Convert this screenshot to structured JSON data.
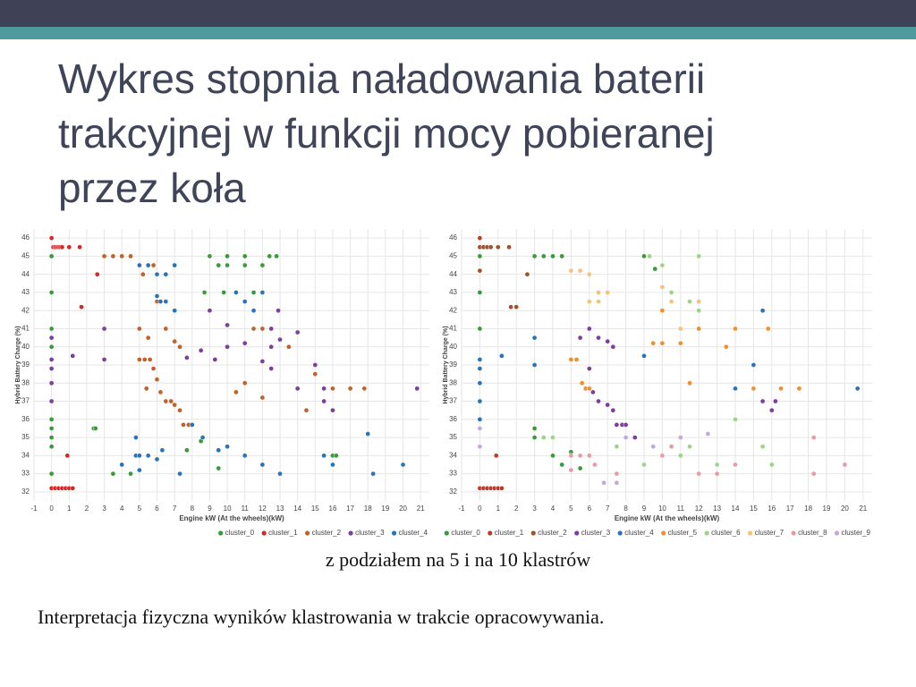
{
  "header": {
    "title": [
      "Wykres stopnia naładowania baterii",
      "trakcyjnej w funkcji mocy pobieranej",
      "przez koła"
    ]
  },
  "chart_data": [
    {
      "type": "scatter",
      "xlabel": "Engine kW (At the wheels)(kW)",
      "ylabel": "Hybrid Battery Charge (%)",
      "xlim": [
        -1,
        21.5
      ],
      "ylim": [
        31.5,
        46.5
      ],
      "xticks": [
        -1,
        0,
        1,
        2,
        3,
        4,
        5,
        6,
        7,
        8,
        9,
        10,
        11,
        12,
        13,
        14,
        15,
        16,
        17,
        18,
        19,
        20,
        21
      ],
      "yticks": [
        32,
        33,
        34,
        35,
        36,
        37,
        38,
        39,
        40,
        41,
        42,
        43,
        44,
        45,
        46
      ],
      "grid": true,
      "legend": "bottom-right",
      "series": [
        {
          "name": "cluster_0",
          "color": "#3a9a3a",
          "x": [
            0,
            0,
            0,
            0,
            0,
            0,
            0,
            0,
            0,
            0,
            9,
            10,
            11,
            12.4,
            12.8,
            9.5,
            10,
            11,
            12,
            8.7,
            9.8,
            11.5,
            2.4,
            2.5,
            3.5,
            4.5,
            7.7,
            8.5,
            9.5,
            16,
            16.2
          ],
          "values": [
            45,
            43,
            41,
            40,
            38,
            36,
            35.5,
            35,
            34.5,
            33,
            45,
            45,
            45,
            45,
            45,
            44.5,
            44.5,
            44.5,
            44.5,
            43,
            43,
            43,
            35.5,
            35.5,
            33,
            33,
            34.3,
            34.8,
            33.3,
            34,
            34
          ]
        },
        {
          "name": "cluster_1",
          "color": "#d62728",
          "x": [
            0,
            0.1,
            0.2,
            0.3,
            0.4,
            0.5,
            0.6,
            1,
            1.6,
            0,
            0.2,
            0.4,
            0.6,
            0.8,
            1,
            1.2,
            1.7,
            0.9,
            2.6
          ],
          "values": [
            46,
            45.5,
            45.5,
            45.5,
            45.5,
            45.5,
            45.5,
            45.5,
            45.5,
            32.2,
            32.2,
            32.2,
            32.2,
            32.2,
            32.2,
            32.2,
            42.2,
            34,
            44
          ]
        },
        {
          "name": "cluster_2",
          "color": "#c0622c",
          "x": [
            3,
            3.5,
            4,
            4.5,
            5.2,
            5.8,
            6,
            5,
            5.5,
            6.5,
            7,
            7.3,
            5,
            5.3,
            5.6,
            5.8,
            6,
            5.4,
            6.2,
            6.5,
            6.8,
            7,
            7.3,
            7.5,
            7.8,
            8,
            11,
            11.5,
            12,
            13.5,
            14,
            14.5,
            15,
            16,
            17,
            17.8,
            11,
            10.5,
            12
          ],
          "values": [
            45,
            45,
            45,
            45,
            44,
            44.5,
            42.5,
            41,
            40.5,
            41,
            40.3,
            40,
            39.3,
            39.3,
            39.3,
            38.8,
            38.2,
            37.7,
            37.5,
            37,
            37,
            36.8,
            36.5,
            35.7,
            35.7,
            35.7,
            40.2,
            41,
            41,
            40,
            37.7,
            36.5,
            38.5,
            37.7,
            37.7,
            37.7,
            38,
            37.5,
            37.2
          ]
        },
        {
          "name": "cluster_3",
          "color": "#7b3f9e",
          "x": [
            0,
            0,
            0,
            0,
            0,
            3,
            3,
            1.2,
            7.7,
            8.5,
            9.3,
            10,
            11,
            12.5,
            13,
            14,
            12,
            12.5,
            15,
            14,
            15.5,
            20.8,
            15.5,
            16,
            10,
            9,
            12.5,
            12.9
          ],
          "values": [
            40.5,
            39.3,
            38.8,
            38,
            37,
            41,
            39.3,
            39.5,
            39.4,
            39.8,
            39.3,
            40,
            40.2,
            40,
            40.4,
            40.8,
            39.2,
            38.8,
            39,
            37.7,
            37.7,
            37.7,
            37,
            36.5,
            41.2,
            42,
            41,
            42
          ]
        },
        {
          "name": "cluster_4",
          "color": "#2b73b5",
          "x": [
            5,
            5.5,
            6,
            6.5,
            7,
            6,
            6.2,
            6.5,
            7,
            4.8,
            4.8,
            5,
            5.5,
            6,
            6.3,
            4,
            5,
            7.3,
            8,
            8.6,
            9.5,
            10,
            11,
            12,
            13,
            18.3,
            20,
            18,
            10.5,
            11,
            12,
            11.5,
            15.5,
            16
          ],
          "values": [
            44.5,
            44.5,
            44,
            44,
            44.5,
            42.8,
            42.5,
            42.5,
            42,
            35,
            34,
            34,
            34,
            33.8,
            34.3,
            33.5,
            33.2,
            33,
            35.7,
            35,
            34.3,
            34.5,
            34,
            33.5,
            33,
            33,
            33.5,
            35.2,
            43,
            42.5,
            43,
            42,
            34,
            33.5
          ]
        }
      ]
    },
    {
      "type": "scatter",
      "xlabel": "Engine kW (At the wheels)(kW)",
      "ylabel": "Hybrid Battery Charge (%)",
      "xlim": [
        -1,
        21.5
      ],
      "ylim": [
        31.5,
        46.5
      ],
      "xticks": [
        -1,
        0,
        1,
        2,
        3,
        4,
        5,
        6,
        7,
        8,
        9,
        10,
        11,
        12,
        13,
        14,
        15,
        16,
        17,
        18,
        19,
        20,
        21
      ],
      "yticks": [
        32,
        33,
        34,
        35,
        36,
        37,
        38,
        39,
        40,
        41,
        42,
        43,
        44,
        45,
        46
      ],
      "grid": true,
      "legend": "bottom-right",
      "series": [
        {
          "name": "cluster_0",
          "color": "#3a9a3a",
          "x": [
            0,
            0,
            0,
            3,
            3.5,
            4,
            4.5,
            9,
            9.6,
            3,
            3,
            4,
            5,
            5.5,
            4.5
          ],
          "values": [
            45,
            43,
            41,
            45,
            45,
            45,
            45,
            45,
            44.3,
            35.5,
            35,
            34,
            34.2,
            33.3,
            33.5
          ]
        },
        {
          "name": "cluster_1",
          "color": "#c0392b",
          "x": [
            0,
            0,
            0.2,
            0.4,
            0.6,
            0.8,
            1,
            1.2,
            0.9
          ],
          "values": [
            46,
            32.2,
            32.2,
            32.2,
            32.2,
            32.2,
            32.2,
            32.2,
            34
          ]
        },
        {
          "name": "cluster_2",
          "color": "#a0522d",
          "x": [
            0,
            0.2,
            0.4,
            0.6,
            1,
            1.6,
            2.6,
            1.7,
            2,
            0
          ],
          "values": [
            45.5,
            45.5,
            45.5,
            45.5,
            45.5,
            45.5,
            44,
            42.2,
            42.2,
            44.2
          ]
        },
        {
          "name": "cluster_3",
          "color": "#7b3f9e",
          "x": [
            5.5,
            6,
            6.5,
            7,
            7.3,
            5,
            6,
            6.2,
            6.5,
            7,
            7.3,
            7.5,
            7.8,
            8,
            8.5,
            15.5,
            16,
            16.2
          ],
          "values": [
            40.5,
            41,
            40.5,
            40.3,
            40,
            39.3,
            38.8,
            37.5,
            37,
            36.8,
            36.5,
            35.7,
            35.7,
            35.7,
            35,
            37,
            36.5,
            37
          ]
        },
        {
          "name": "cluster_4",
          "color": "#2b73b5",
          "x": [
            0,
            0,
            0,
            0,
            0,
            1.2,
            3,
            3,
            9,
            15.5,
            15,
            14,
            20.7
          ],
          "values": [
            39.3,
            38.8,
            38,
            37,
            36,
            39.5,
            39,
            40.5,
            39.5,
            42,
            39,
            37.7,
            37.7
          ]
        },
        {
          "name": "cluster_5",
          "color": "#f28e2b",
          "x": [
            5,
            5.3,
            5.6,
            5.8,
            6,
            9.5,
            10,
            11,
            12,
            13.5,
            14,
            15.8,
            10,
            11.5,
            15,
            16.5,
            17.5
          ],
          "values": [
            39.3,
            39.3,
            38,
            37.7,
            37.7,
            40.2,
            40.2,
            40.2,
            41,
            40,
            41,
            41,
            42,
            38,
            37.7,
            37.7,
            37.7
          ]
        },
        {
          "name": "cluster_6",
          "color": "#9fd28a",
          "x": [
            9.3,
            10,
            12,
            10.5,
            11.5,
            12,
            14,
            15.5,
            16,
            7.5,
            9,
            11,
            11.5,
            3.5,
            4,
            13
          ],
          "values": [
            45,
            44.5,
            45,
            43,
            42.5,
            42,
            36,
            34.5,
            33.5,
            34.5,
            33.5,
            34,
            34.5,
            35,
            35,
            33.5
          ]
        },
        {
          "name": "cluster_7",
          "color": "#f5c27a",
          "x": [
            5,
            5.5,
            6,
            6.5,
            7,
            6,
            6.5,
            10,
            10.5,
            11,
            12
          ],
          "values": [
            44.2,
            44.2,
            44,
            43,
            43,
            42.5,
            42.5,
            43.3,
            42.5,
            41,
            42.5
          ]
        },
        {
          "name": "cluster_8",
          "color": "#e89aa8",
          "x": [
            5,
            5.5,
            6,
            6.3,
            5,
            7.5,
            10,
            10.5,
            12,
            13,
            18.3,
            20,
            18.3,
            14
          ],
          "values": [
            34,
            34,
            34,
            33.5,
            33.2,
            33,
            34,
            34.5,
            33,
            33,
            33,
            33.5,
            35,
            33.5
          ]
        },
        {
          "name": "cluster_9",
          "color": "#c3a8dc",
          "x": [
            0,
            0,
            7.5,
            9.5,
            11,
            12.5,
            8,
            6.8
          ],
          "values": [
            35.5,
            34.5,
            32.5,
            34.5,
            35,
            35.2,
            35,
            32.5
          ]
        }
      ]
    }
  ],
  "caption": "z podziałem na 5 i na 10 klastrów",
  "note": "Interpretacja fizyczna wyników klastrowania w trakcie opracowywania."
}
